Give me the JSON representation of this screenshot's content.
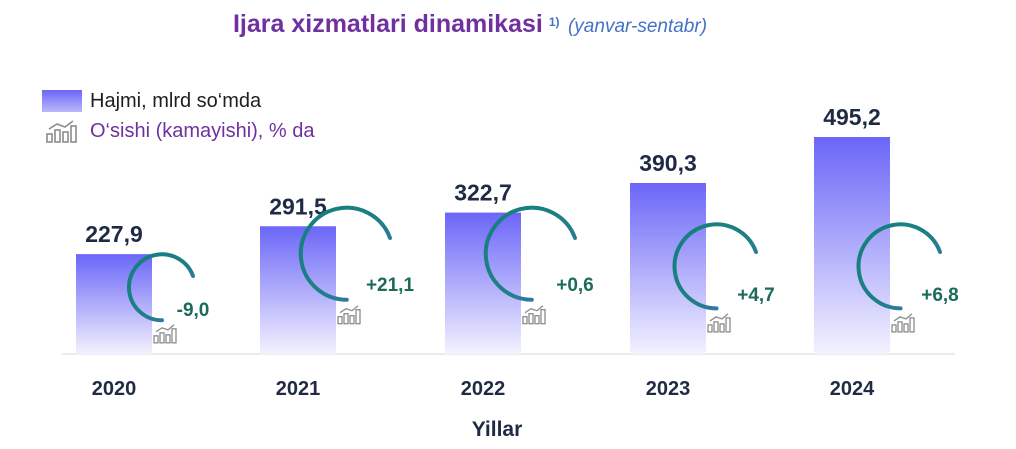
{
  "title": {
    "main": "Ijara xizmatlari dinamikasi",
    "note": "1)",
    "period": "(yanvar-sentabr)"
  },
  "legend": {
    "volume": "Hajmi, mlrd so‘mda",
    "growth": "O‘sishi (kamayishi), % da"
  },
  "colors": {
    "bar_top": "#6b66f8",
    "bar_bottom": "#f3f2fe",
    "title": "#7030a0",
    "ring_teal": "#13807b",
    "ring_blue": "#4472c4",
    "growth_text": "#1a6b5a",
    "icon": "#8c8c8c"
  },
  "chart_data": {
    "type": "bar",
    "categories": [
      "2020",
      "2021",
      "2022",
      "2023",
      "2024"
    ],
    "series": [
      {
        "name": "Hajmi, mlrd so‘mda",
        "values": [
          227.9,
          291.5,
          322.7,
          390.3,
          495.2
        ]
      },
      {
        "name": "O‘sishi (kamayishi), % da",
        "values": [
          -9.0,
          21.1,
          0.6,
          4.7,
          6.8
        ]
      }
    ],
    "value_labels": [
      "227,9",
      "291,5",
      "322,7",
      "390,3",
      "495,2"
    ],
    "growth_labels": [
      "-9,0",
      "+21,1",
      "+0,6",
      "+4,7",
      "+6,8"
    ],
    "xlabel": "Yillar",
    "ylabel": "",
    "legend_position": "top-left",
    "grid": false
  }
}
